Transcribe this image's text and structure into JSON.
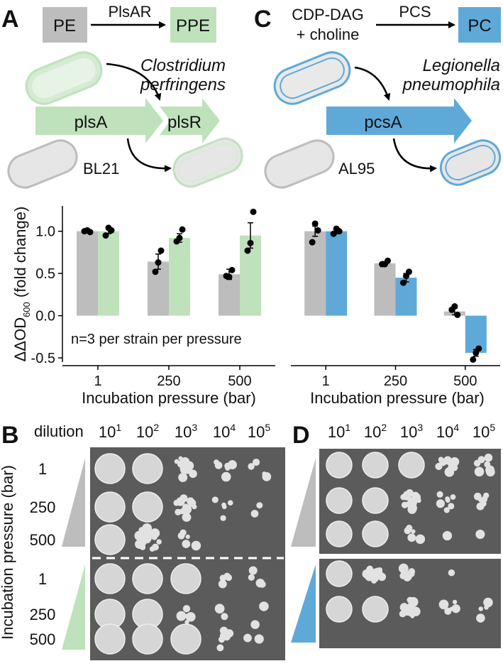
{
  "panels": {
    "a": "A",
    "b": "B",
    "c": "C",
    "d": "D"
  },
  "colors": {
    "gray": "#bdbdbd",
    "green": "#bfe2bc",
    "blue": "#5fa9d9",
    "plate": "#5b5b5b",
    "colony": "#dcdcdc"
  },
  "panel_a": {
    "substrate": "PE",
    "enzyme": "PlsAR",
    "product": "PPE",
    "organism_line1": "Clostridium",
    "organism_line2": "perfringens",
    "gene1": "plsA",
    "gene2": "plsR",
    "host": "BL21"
  },
  "panel_c": {
    "substrate_line1": "CDP-DAG",
    "substrate_line2": "+ choline",
    "enzyme": "PCS",
    "product": "PC",
    "organism_line1": "Legionella",
    "organism_line2": "pneumophila",
    "gene": "pcsA",
    "host": "AL95"
  },
  "chart_data": [
    {
      "type": "bar",
      "categories": [
        "1",
        "250",
        "500"
      ],
      "xlabel": "Incubation pressure (bar)",
      "ylabel_prefix": "ΔΔOD",
      "ylabel_sub": "600",
      "ylabel_suffix": " (fold change)",
      "yticks": [
        "-0.5",
        "0.0",
        "0.5",
        "1.0"
      ],
      "ylim": [
        -0.55,
        1.3
      ],
      "annotation": "n=3 per strain per pressure",
      "series": [
        {
          "color": "#bdbdbd",
          "values": [
            1.0,
            0.64,
            0.49
          ],
          "err": [
            0.02,
            0.09,
            0.06
          ],
          "points": [
            [
              1.0,
              1.01,
              0.99
            ],
            [
              0.52,
              0.63,
              0.77
            ],
            [
              0.47,
              0.46,
              0.54
            ]
          ]
        },
        {
          "color": "#bfe2bc",
          "values": [
            1.0,
            0.92,
            0.95
          ],
          "err": [
            0.03,
            0.05,
            0.15
          ],
          "points": [
            [
              0.95,
              1.04,
              1.01
            ],
            [
              0.88,
              0.92,
              1.02
            ],
            [
              0.77,
              0.86,
              1.23
            ]
          ]
        }
      ]
    },
    {
      "type": "bar",
      "categories": [
        "1",
        "250",
        "500"
      ],
      "xlabel": "Incubation pressure (bar)",
      "ylim": [
        -0.55,
        1.3
      ],
      "series": [
        {
          "color": "#bdbdbd",
          "values": [
            1.0,
            0.62,
            0.05
          ],
          "err": [
            0.06,
            0.02,
            0.04
          ],
          "points": [
            [
              0.87,
              1.09,
              1.01
            ],
            [
              0.61,
              0.61,
              0.65
            ],
            [
              0.07,
              0.11,
              0.01
            ]
          ]
        },
        {
          "color": "#5fa9d9",
          "values": [
            1.0,
            0.45,
            -0.44
          ],
          "err": [
            0.03,
            0.05,
            0.04
          ],
          "points": [
            [
              0.97,
              1.03,
              1.0
            ],
            [
              0.39,
              0.47,
              0.52
            ],
            [
              -0.52,
              -0.44,
              -0.39
            ]
          ]
        }
      ]
    }
  ],
  "panel_b": {
    "header": "dilution",
    "dilution_base": [
      "10",
      "10",
      "10",
      "10",
      "10"
    ],
    "dilution_exp": [
      "1",
      "2",
      "3",
      "4",
      "5"
    ],
    "side_label": "Incubation pressure (bar)",
    "row_labels": [
      "1",
      "250",
      "500",
      "1",
      "250",
      "500"
    ],
    "colony_counts": [
      [
        -1,
        -1,
        14,
        6,
        4
      ],
      [
        -1,
        -1,
        12,
        5,
        2
      ],
      [
        -1,
        22,
        5,
        0,
        0
      ],
      [
        -1,
        -1,
        -1,
        4,
        4
      ],
      [
        -1,
        -1,
        7,
        2,
        2
      ],
      [
        -1,
        -1,
        -1,
        6,
        3
      ]
    ]
  },
  "panel_d": {
    "dilution_base": [
      "10",
      "10",
      "10",
      "10",
      "10"
    ],
    "dilution_exp": [
      "1",
      "2",
      "3",
      "4",
      "5"
    ],
    "colony_counts": [
      [
        -1,
        -1,
        -1,
        12,
        8
      ],
      [
        -1,
        -1,
        14,
        8,
        7
      ],
      [
        -1,
        -1,
        5,
        1,
        1
      ],
      [
        -1,
        24,
        9,
        1,
        0
      ],
      [
        -1,
        -1,
        20,
        5,
        4
      ]
    ]
  }
}
